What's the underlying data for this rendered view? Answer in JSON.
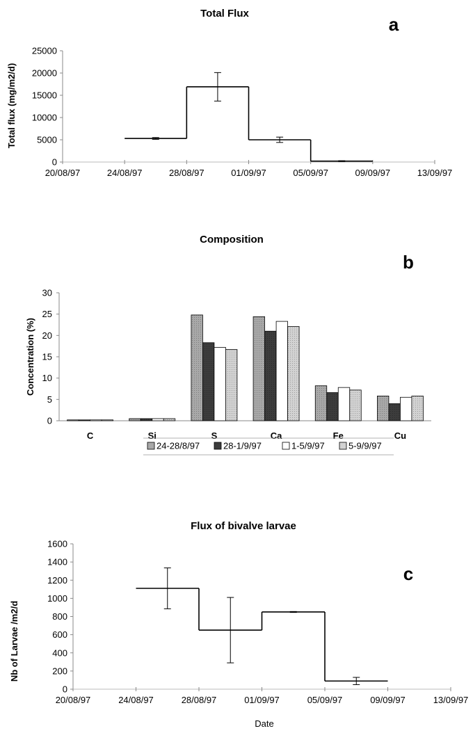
{
  "charts": [
    {
      "title": "Total Flux",
      "panel_letter": "a",
      "ylabel": "Total flux (mg/m2/d)",
      "yticks": [
        "0",
        "5000",
        "10000",
        "15000",
        "20000",
        "25000"
      ],
      "xticks": [
        "20/08/97",
        "24/08/97",
        "28/08/97",
        "01/09/97",
        "05/09/97",
        "09/09/97",
        "13/09/97"
      ]
    },
    {
      "title": "Composition",
      "panel_letter": "b",
      "ylabel": "Concentration (%)",
      "yticks": [
        "0",
        "5",
        "10",
        "15",
        "20",
        "25",
        "30"
      ],
      "categories": [
        "C",
        "Si",
        "S",
        "Ca",
        "Fe",
        "Cu"
      ],
      "legend": [
        "24-28/8/97",
        "28-1/9/97",
        "1-5/9/97",
        "5-9/9/97"
      ]
    },
    {
      "title": "Flux of bivalve larvae",
      "panel_letter": "c",
      "ylabel": "Nb of Larvae /m2/d",
      "xlabel": "Date",
      "yticks": [
        "0",
        "200",
        "400",
        "600",
        "800",
        "1000",
        "1200",
        "1400",
        "1600"
      ],
      "xticks": [
        "20/08/97",
        "24/08/97",
        "28/08/97",
        "01/09/97",
        "05/09/97",
        "09/09/97",
        "13/09/97"
      ]
    }
  ],
  "chart_data": [
    {
      "type": "line",
      "title": "Total Flux",
      "ylabel": "Total flux (mg/m2/d)",
      "xlabel": "",
      "ylim": [
        0,
        25000
      ],
      "xlim": [
        "20/08/97",
        "13/09/97"
      ],
      "series": [
        {
          "intervals": [
            {
              "start": "24/08/97",
              "end": "28/08/97",
              "value": 5300,
              "error": 200
            },
            {
              "start": "28/08/97",
              "end": "01/09/97",
              "value": 16900,
              "error": 3200
            },
            {
              "start": "01/09/97",
              "end": "05/09/97",
              "value": 5000,
              "error": 600
            },
            {
              "start": "05/09/97",
              "end": "09/09/97",
              "value": 200,
              "error": 100
            }
          ]
        }
      ],
      "grid": false
    },
    {
      "type": "bar",
      "title": "Composition",
      "ylabel": "Concentration (%)",
      "xlabel": "",
      "ylim": [
        0,
        30
      ],
      "categories": [
        "C",
        "Si",
        "S",
        "Ca",
        "Fe",
        "Cu"
      ],
      "series": [
        {
          "name": "24-28/8/97",
          "values": [
            0.2,
            0.5,
            24.8,
            24.4,
            8.2,
            5.8
          ],
          "color": "#a8a8a8"
        },
        {
          "name": "28-1/9/97",
          "values": [
            0.2,
            0.5,
            18.3,
            21.0,
            6.6,
            4.0
          ],
          "color": "#3c3c3c"
        },
        {
          "name": "1-5/9/97",
          "values": [
            0.2,
            0.5,
            17.2,
            23.3,
            7.8,
            5.5
          ],
          "color": "#ffffff"
        },
        {
          "name": "5-9/9/97",
          "values": [
            0.2,
            0.5,
            16.7,
            22.1,
            7.2,
            5.8
          ],
          "color": "#d2d2d2"
        }
      ],
      "legend_position": "bottom"
    },
    {
      "type": "line",
      "title": "Flux of bivalve larvae",
      "ylabel": "Nb of Larvae /m2/d",
      "xlabel": "Date",
      "ylim": [
        0,
        1600
      ],
      "xlim": [
        "20/08/97",
        "13/09/97"
      ],
      "series": [
        {
          "intervals": [
            {
              "start": "24/08/97",
              "end": "28/08/97",
              "value": 1110,
              "error": 225
            },
            {
              "start": "28/08/97",
              "end": "01/09/97",
              "value": 650,
              "error": 360
            },
            {
              "start": "01/09/97",
              "end": "05/09/97",
              "value": 850,
              "error": 5
            },
            {
              "start": "05/09/97",
              "end": "09/09/97",
              "value": 90,
              "error": 40
            }
          ]
        }
      ],
      "grid": false
    }
  ]
}
